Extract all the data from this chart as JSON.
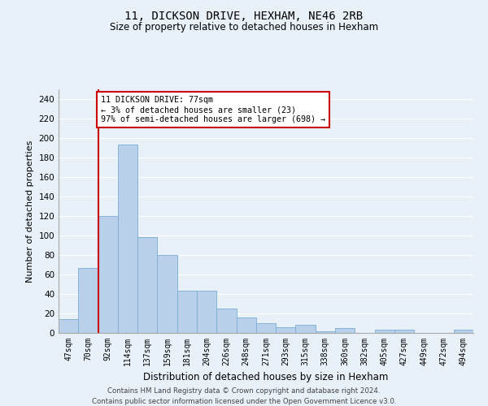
{
  "title": "11, DICKSON DRIVE, HEXHAM, NE46 2RB",
  "subtitle": "Size of property relative to detached houses in Hexham",
  "xlabel": "Distribution of detached houses by size in Hexham",
  "ylabel": "Number of detached properties",
  "bar_color": "#b8d0ea",
  "bar_edge_color": "#7aadd4",
  "background_color": "#e8f0f8",
  "figure_color": "#e8f0f8",
  "grid_color": "#ffffff",
  "categories": [
    "47sqm",
    "70sqm",
    "92sqm",
    "114sqm",
    "137sqm",
    "159sqm",
    "181sqm",
    "204sqm",
    "226sqm",
    "248sqm",
    "271sqm",
    "293sqm",
    "315sqm",
    "338sqm",
    "360sqm",
    "382sqm",
    "405sqm",
    "427sqm",
    "449sqm",
    "472sqm",
    "494sqm"
  ],
  "values": [
    14,
    67,
    120,
    193,
    98,
    80,
    43,
    43,
    25,
    16,
    10,
    6,
    8,
    2,
    5,
    0,
    3,
    3,
    0,
    0,
    3
  ],
  "ylim": [
    0,
    250
  ],
  "yticks": [
    0,
    20,
    40,
    60,
    80,
    100,
    120,
    140,
    160,
    180,
    200,
    220,
    240
  ],
  "property_line_color": "#cc0000",
  "property_line_x": 1.5,
  "annotation_text": "11 DICKSON DRIVE: 77sqm\n← 3% of detached houses are smaller (23)\n97% of semi-detached houses are larger (698) →",
  "annotation_box_facecolor": "#ffffff",
  "annotation_box_edgecolor": "#cc0000",
  "footer_line1": "Contains HM Land Registry data © Crown copyright and database right 2024.",
  "footer_line2": "Contains public sector information licensed under the Open Government Licence v3.0."
}
